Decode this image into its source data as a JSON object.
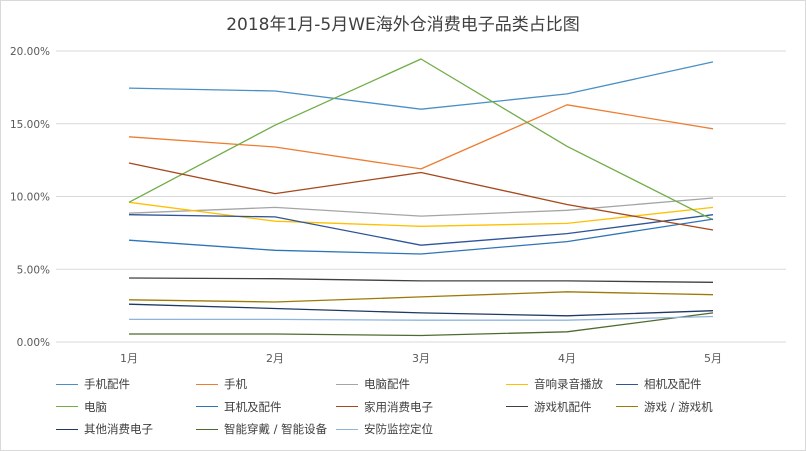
{
  "chart_data": {
    "type": "line",
    "title": "2018年1月-5月WE海外仓消费电子品类占比图",
    "xlabel": "",
    "ylabel": "",
    "categories": [
      "1月",
      "2月",
      "3月",
      "4月",
      "5月"
    ],
    "ylim": [
      0,
      20
    ],
    "ytick_labels": [
      "0.00%",
      "5.00%",
      "10.00%",
      "15.00%",
      "20.00%"
    ],
    "grid": "horizontal",
    "legend_position": "bottom",
    "series": [
      {
        "name": "手机配件",
        "color": "#4a90c4",
        "values": [
          17.45,
          17.25,
          16.0,
          17.05,
          19.25
        ]
      },
      {
        "name": "手机",
        "color": "#ed7d31",
        "values": [
          14.1,
          13.4,
          11.9,
          16.3,
          14.65
        ]
      },
      {
        "name": "电脑配件",
        "color": "#a5a5a5",
        "values": [
          8.85,
          9.25,
          8.65,
          9.05,
          9.9
        ]
      },
      {
        "name": "音响录音播放",
        "color": "#ffc000",
        "values": [
          9.6,
          8.3,
          7.95,
          8.15,
          9.25
        ]
      },
      {
        "name": "相机及配件",
        "color": "#2f5597",
        "values": [
          8.75,
          8.6,
          6.65,
          7.45,
          8.75
        ]
      },
      {
        "name": "电脑",
        "color": "#70ad47",
        "values": [
          9.6,
          14.9,
          19.45,
          13.45,
          8.4
        ]
      },
      {
        "name": "耳机及配件",
        "color": "#2e75b6",
        "values": [
          7.0,
          6.3,
          6.05,
          6.9,
          8.45
        ]
      },
      {
        "name": "家用消费电子",
        "color": "#a5481b",
        "values": [
          12.3,
          10.2,
          11.65,
          9.45,
          7.7
        ]
      },
      {
        "name": "游戏机配件",
        "color": "#404040",
        "values": [
          4.4,
          4.35,
          4.2,
          4.2,
          4.1
        ]
      },
      {
        "name": "游戏 / 游戏机",
        "color": "#9c7a0a",
        "values": [
          2.9,
          2.75,
          3.1,
          3.45,
          3.25
        ]
      },
      {
        "name": "其他消费电子",
        "color": "#203864",
        "values": [
          2.6,
          2.3,
          2.0,
          1.8,
          2.15
        ]
      },
      {
        "name": "智能穿戴 / 智能设备",
        "color": "#4e6b2f",
        "values": [
          0.55,
          0.55,
          0.45,
          0.7,
          2.0
        ]
      },
      {
        "name": "安防监控定位",
        "color": "#8fb4dc",
        "values": [
          1.55,
          1.55,
          1.5,
          1.5,
          1.75
        ]
      }
    ]
  }
}
